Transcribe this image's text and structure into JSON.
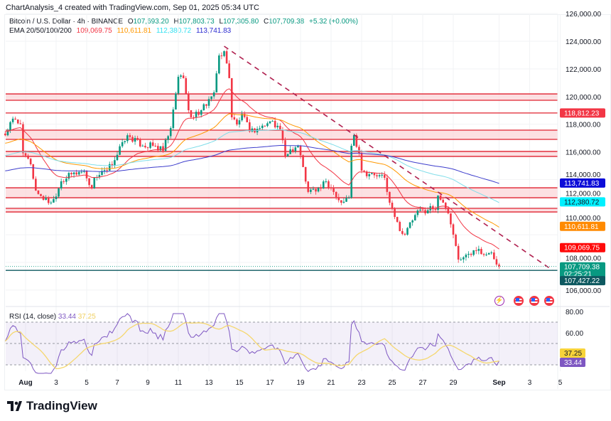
{
  "header": {
    "credit": "ChartAnalysis_4 created with TradingView.com, Sep 01, 2025 05:34 UTC",
    "symbol": "Bitcoin / U.S. Dollar · 4h · BINANCE",
    "o_label": "O",
    "o": "107,693.20",
    "h_label": "H",
    "h": "107,803.73",
    "l_label": "L",
    "l": "107,305.80",
    "c_label": "C",
    "c": "107,709.38",
    "change": "+5.32 (+0.00%)",
    "ema_label": "EMA 20/50/100/200",
    "ema20": "109,069.75",
    "ema50": "110,611.81",
    "ema100": "112,380.72",
    "ema200": "113,741.83"
  },
  "rsi_legend": {
    "label": "RSI (14, close)",
    "value": "33.44",
    "ma": "37.25"
  },
  "colors": {
    "up": "#089981",
    "down": "#f23645",
    "ema20": "#f23645",
    "ema50": "#ff9800",
    "ema100": "#7fdde9",
    "ema200": "#3d3dcc",
    "zone_fill": "#fbd5d8",
    "zone_line": "#e0202f",
    "trend": "#b0204f",
    "rsi": "#7e57c2",
    "rsi_ma": "#f5d76e"
  },
  "chart_data": [
    {
      "type": "candlestick",
      "title": "Bitcoin / U.S. Dollar · 4h · BINANCE",
      "ylim": [
        105000,
        126500
      ],
      "yticks": [
        "126,000.00",
        "124,000.00",
        "122,000.00",
        "120,000.00",
        "118,000.00",
        "116,000.00",
        "114,000.00",
        "112,000.00",
        "110,000.00",
        "108,000.00",
        "106,000.00"
      ],
      "ytick_values": [
        126000,
        124000,
        122000,
        120000,
        118000,
        116000,
        114000,
        112000,
        110000,
        108000,
        106000
      ],
      "xticks": [
        "Aug",
        "3",
        "5",
        "7",
        "9",
        "11",
        "13",
        "15",
        "17",
        "19",
        "21",
        "23",
        "25",
        "27",
        "29",
        "Sep",
        "3",
        "5"
      ],
      "xtick_dates": [
        "Aug 1",
        "Aug 3",
        "Aug 5",
        "Aug 7",
        "Aug 9",
        "Aug 11",
        "Aug 13",
        "Aug 15",
        "Aug 17",
        "Aug 19",
        "Aug 21",
        "Aug 23",
        "Aug 25",
        "Aug 27",
        "Aug 29",
        "Sep 1",
        "Sep 3",
        "Sep 5"
      ],
      "close_path": [
        [
          "Jul 30 16:00",
          117200
        ],
        [
          "Jul 31 04:00",
          118400
        ],
        [
          "Jul 31 16:00",
          118000
        ],
        [
          "Jul 31 20:00",
          115900
        ],
        [
          "Aug 1 08:00",
          115100
        ],
        [
          "Aug 1 16:00",
          113200
        ],
        [
          "Aug 2 12:00",
          112300
        ],
        [
          "Aug 2 20:00",
          112580
        ],
        [
          "Aug 3 08:00",
          113870
        ],
        [
          "Aug 4 00:00",
          114380
        ],
        [
          "Aug 4 20:00",
          114640
        ],
        [
          "Aug 5 08:00",
          113350
        ],
        [
          "Aug 5 12:00",
          114120
        ],
        [
          "Aug 6 08:00",
          114640
        ],
        [
          "Aug 6 20:00",
          115400
        ],
        [
          "Aug 7 08:00",
          116700
        ],
        [
          "Aug 7 16:00",
          117200
        ],
        [
          "Aug 8 16:00",
          116440
        ],
        [
          "Aug 9 08:00",
          116440
        ],
        [
          "Aug 10 00:00",
          116080
        ],
        [
          "Aug 10 12:00",
          117720
        ],
        [
          "Aug 11 00:00",
          121430
        ],
        [
          "Aug 11 08:00",
          121330
        ],
        [
          "Aug 11 16:00",
          119010
        ],
        [
          "Aug 11 20:00",
          118500
        ],
        [
          "Aug 12 12:00",
          119010
        ],
        [
          "Aug 13 08:00",
          120300
        ],
        [
          "Aug 13 16:00",
          122970
        ],
        [
          "Aug 14 00:00",
          123280
        ],
        [
          "Aug 14 08:00",
          121330
        ],
        [
          "Aug 14 12:00",
          118500
        ],
        [
          "Aug 14 20:00",
          117980
        ],
        [
          "Aug 15 04:00",
          118750
        ],
        [
          "Aug 15 16:00",
          117470
        ],
        [
          "Aug 16 08:00",
          117720
        ],
        [
          "Aug 17 04:00",
          118240
        ],
        [
          "Aug 17 16:00",
          117570
        ],
        [
          "Aug 18 00:00",
          115670
        ],
        [
          "Aug 18 08:00",
          116180
        ],
        [
          "Aug 18 20:00",
          116440
        ],
        [
          "Aug 19 04:00",
          114900
        ],
        [
          "Aug 19 12:00",
          113100
        ],
        [
          "Aug 20 08:00",
          113350
        ],
        [
          "Aug 20 16:00",
          113870
        ],
        [
          "Aug 21 04:00",
          113100
        ],
        [
          "Aug 21 16:00",
          112320
        ],
        [
          "Aug 22 04:00",
          112680
        ],
        [
          "Aug 22 08:00",
          116440
        ],
        [
          "Aug 22 12:00",
          117210
        ],
        [
          "Aug 22 20:00",
          115920
        ],
        [
          "Aug 23 00:00",
          114640
        ],
        [
          "Aug 23 12:00",
          114380
        ],
        [
          "Aug 24 00:00",
          114230
        ],
        [
          "Aug 24 12:00",
          114120
        ],
        [
          "Aug 24 16:00",
          113100
        ],
        [
          "Aug 24 20:00",
          112320
        ],
        [
          "Aug 25 04:00",
          111290
        ],
        [
          "Aug 25 12:00",
          110270
        ],
        [
          "Aug 25 20:00",
          110010
        ],
        [
          "Aug 26 08:00",
          111040
        ],
        [
          "Aug 26 20:00",
          111810
        ],
        [
          "Aug 27 04:00",
          111550
        ],
        [
          "Aug 27 12:00",
          112070
        ],
        [
          "Aug 27 20:00",
          111810
        ],
        [
          "Aug 28 00:00",
          112840
        ],
        [
          "Aug 28 08:00",
          112320
        ],
        [
          "Aug 28 16:00",
          111550
        ],
        [
          "Aug 29 00:00",
          110010
        ],
        [
          "Aug 29 08:00",
          108210
        ],
        [
          "Aug 29 16:00",
          108370
        ],
        [
          "Aug 30 00:00",
          108620
        ],
        [
          "Aug 30 08:00",
          108880
        ],
        [
          "Aug 30 16:00",
          108980
        ],
        [
          "Aug 31 04:00",
          108570
        ],
        [
          "Aug 31 12:00",
          108720
        ],
        [
          "Aug 31 20:00",
          107850
        ],
        [
          "Sep 1 00:00",
          107709.38
        ]
      ],
      "zones": [
        [
          119730,
          120190
        ],
        [
          116900,
          117570
        ],
        [
          115670,
          116030
        ],
        [
          112680,
          113400
        ],
        [
          111650,
          111910
        ]
      ],
      "lines": [
        118812.23
      ],
      "support_line": 107427.22,
      "trendline": {
        "from": [
          "Aug 14 00:00",
          123640
        ],
        "to": [
          "Sep 4 12:00",
          107440
        ]
      },
      "price_labels": [
        {
          "text": "118,812.23",
          "value": 118812.23,
          "color": "#f23645",
          "fg": "#ffffff"
        },
        {
          "text": "113,741.83",
          "value": 113741.83,
          "color": "#0c0cd8",
          "fg": "#ffffff"
        },
        {
          "text": "112,380.72",
          "value": 112380.72,
          "color": "#00f0ff",
          "fg": "#131722"
        },
        {
          "text": "110,611.81",
          "value": 110611.81,
          "color": "#ff8a00",
          "fg": "#ffffff"
        },
        {
          "text": "109,069.75",
          "value": 109069.75,
          "color": "#ff0a0a",
          "fg": "#ffffff"
        },
        {
          "text": "107,709.38",
          "value": 107709.38,
          "color": "#089981",
          "fg": "#ffffff",
          "sub": "02:25:21"
        },
        {
          "text": "107,427.22",
          "value": 107427.22,
          "color": "#0e5960",
          "fg": "#ffffff"
        }
      ]
    },
    {
      "type": "line",
      "title": "RSI (14, close)",
      "ylim": [
        20,
        80
      ],
      "yticks": [
        "80.00",
        "60.00"
      ],
      "ytick_values": [
        80,
        60
      ],
      "bands": [
        30,
        50,
        70
      ],
      "series": [
        {
          "name": "RSI",
          "last": 33.44
        },
        {
          "name": "RSI MA",
          "last": 37.25
        }
      ]
    }
  ],
  "events": [
    "lightning-icon",
    "us-flag-icon",
    "us-flag-icon",
    "us-flag-icon"
  ],
  "branding": {
    "logo_text": "TradingView"
  }
}
